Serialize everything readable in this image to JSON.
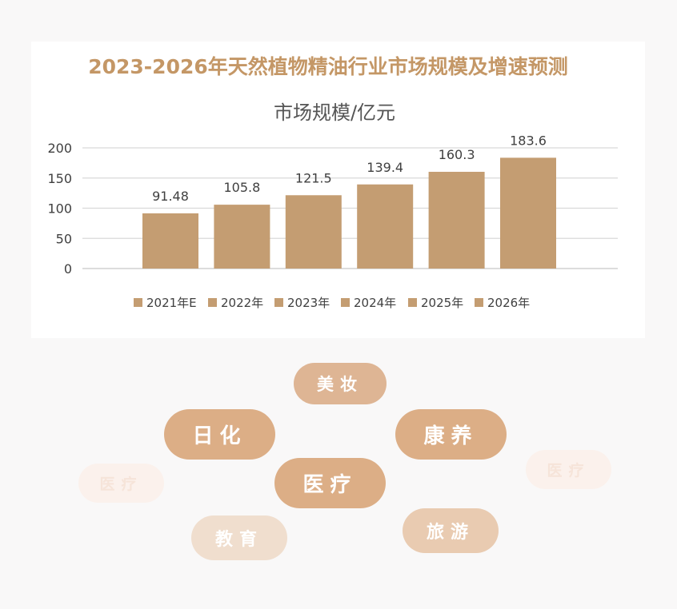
{
  "colors": {
    "bar": "#c49d72",
    "title": "#c49766",
    "grid": "#d9d9d9",
    "text": "#404040"
  },
  "title": "2023-2026年天然植物精油行业市场规模及增速预测",
  "chart_data": {
    "type": "bar",
    "title": "市场规模/亿元",
    "categories": [
      "2021年E",
      "2022年",
      "2023年",
      "2024年",
      "2025年",
      "2026年"
    ],
    "values": [
      91.48,
      105.8,
      121.5,
      139.4,
      160.3,
      183.6
    ],
    "value_labels": [
      "91.48",
      "105.8",
      "121.5",
      "139.4",
      "160.3",
      "183.6"
    ],
    "ylim": [
      0,
      200
    ],
    "yticks": [
      0,
      50,
      100,
      150,
      200
    ],
    "grid": true,
    "legend_position": "bottom"
  },
  "tags": [
    {
      "label": "美妆",
      "color": "#deb594"
    },
    {
      "label": "日化",
      "color": "#dcae86"
    },
    {
      "label": "康养",
      "color": "#dcae86"
    },
    {
      "label": "医疗",
      "color": "#dcae86"
    },
    {
      "label": "医疗",
      "color": "#fbf1ec"
    },
    {
      "label": "医疗",
      "color": "#fbf1ec"
    },
    {
      "label": "教育",
      "color": "#f0dece"
    },
    {
      "label": "旅游",
      "color": "#e9cbb1"
    }
  ]
}
